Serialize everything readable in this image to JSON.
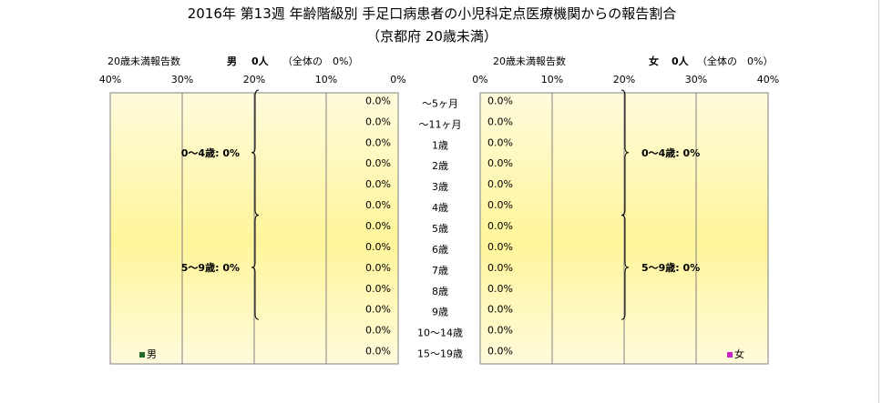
{
  "title_line1": "2016年 第13週 年齢階級別 手足口病患者の小児科定点医療機関からの報告割合",
  "title_line2": "（京都府 20歳未満）",
  "colors": {
    "panel_top": "#fffbdc",
    "panel_mid": "#fff59a",
    "male_marker": "#1e6b2a",
    "female_marker": "#cc22cc"
  },
  "chart_data": [
    {
      "type": "bar",
      "orientation": "horizontal-left",
      "header_label": "20歳未満報告数",
      "header_sex": "男",
      "header_count": "0人",
      "header_share": "（全体の　0%）",
      "categories": [
        "～5ヶ月",
        "～11ヶ月",
        "1歳",
        "2歳",
        "3歳",
        "4歳",
        "5歳",
        "6歳",
        "7歳",
        "8歳",
        "9歳",
        "10～14歳",
        "15～19歳"
      ],
      "values": [
        0,
        0,
        0,
        0,
        0,
        0,
        0,
        0,
        0,
        0,
        0,
        0,
        0
      ],
      "value_labels": [
        "0.0%",
        "0.0%",
        "0.0%",
        "0.0%",
        "0.0%",
        "0.0%",
        "0.0%",
        "0.0%",
        "0.0%",
        "0.0%",
        "0.0%",
        "0.0%",
        "0.0%"
      ],
      "xlim": [
        0,
        40
      ],
      "ticks": [
        40,
        30,
        20,
        10,
        0
      ],
      "tick_labels": [
        "40%",
        "30%",
        "20%",
        "10%",
        "0%"
      ],
      "groups": [
        {
          "label": "0～4歳: 0%",
          "from": 0,
          "to": 5
        },
        {
          "label": "5～9歳: 0%",
          "from": 6,
          "to": 10
        }
      ],
      "legend": "男",
      "legend_placement": "bottom-left"
    },
    {
      "type": "bar",
      "orientation": "horizontal-right",
      "header_label": "20歳未満報告数",
      "header_sex": "女",
      "header_count": "0人",
      "header_share": "（全体の　0%）",
      "categories": [
        "～5ヶ月",
        "～11ヶ月",
        "1歳",
        "2歳",
        "3歳",
        "4歳",
        "5歳",
        "6歳",
        "7歳",
        "8歳",
        "9歳",
        "10～14歳",
        "15～19歳"
      ],
      "values": [
        0,
        0,
        0,
        0,
        0,
        0,
        0,
        0,
        0,
        0,
        0,
        0,
        0
      ],
      "value_labels": [
        "0.0%",
        "0.0%",
        "0.0%",
        "0.0%",
        "0.0%",
        "0.0%",
        "0.0%",
        "0.0%",
        "0.0%",
        "0.0%",
        "0.0%",
        "0.0%",
        "0.0%"
      ],
      "xlim": [
        0,
        40
      ],
      "ticks": [
        0,
        10,
        20,
        30,
        40
      ],
      "tick_labels": [
        "0%",
        "10%",
        "20%",
        "30%",
        "40%"
      ],
      "groups": [
        {
          "label": "0～4歳: 0%",
          "from": 0,
          "to": 5
        },
        {
          "label": "5～9歳: 0%",
          "from": 6,
          "to": 10
        }
      ],
      "legend": "女",
      "legend_placement": "bottom-right"
    }
  ]
}
